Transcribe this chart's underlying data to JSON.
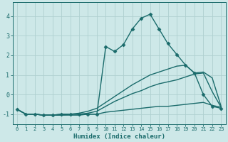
{
  "xlabel": "Humidex (Indice chaleur)",
  "ylabel": "",
  "xlim": [
    -0.5,
    23.5
  ],
  "ylim": [
    -1.5,
    4.7
  ],
  "xticks": [
    0,
    1,
    2,
    3,
    4,
    5,
    6,
    7,
    8,
    9,
    10,
    11,
    12,
    13,
    14,
    15,
    16,
    17,
    18,
    19,
    20,
    21,
    22,
    23
  ],
  "yticks": [
    -1,
    0,
    1,
    2,
    3,
    4
  ],
  "bg_color": "#cde8e8",
  "line_color": "#1a6b6b",
  "grid_color": "#aed0d0",
  "lines": [
    {
      "x": [
        0,
        1,
        2,
        3,
        4,
        5,
        6,
        7,
        8,
        9,
        10,
        11,
        12,
        13,
        14,
        15,
        16,
        17,
        18,
        19,
        20,
        21,
        22,
        23
      ],
      "y": [
        -0.75,
        -1.0,
        -1.0,
        -1.05,
        -1.05,
        -1.05,
        -1.05,
        -1.05,
        -1.0,
        -1.0,
        -0.9,
        -0.85,
        -0.8,
        -0.75,
        -0.7,
        -0.65,
        -0.6,
        -0.6,
        -0.55,
        -0.5,
        -0.45,
        -0.4,
        -0.55,
        -0.65
      ],
      "marker": null,
      "linewidth": 1.0
    },
    {
      "x": [
        0,
        1,
        2,
        3,
        4,
        5,
        6,
        7,
        8,
        9,
        10,
        11,
        12,
        13,
        14,
        15,
        16,
        17,
        18,
        19,
        20,
        21,
        22,
        23
      ],
      "y": [
        -0.75,
        -1.0,
        -1.0,
        -1.05,
        -1.05,
        -1.05,
        -1.0,
        -1.0,
        -0.95,
        -0.85,
        -0.6,
        -0.35,
        -0.15,
        0.05,
        0.2,
        0.4,
        0.55,
        0.65,
        0.75,
        0.9,
        1.05,
        1.1,
        0.15,
        -0.65
      ],
      "marker": null,
      "linewidth": 1.0
    },
    {
      "x": [
        0,
        1,
        2,
        3,
        4,
        5,
        6,
        7,
        8,
        9,
        10,
        11,
        12,
        13,
        14,
        15,
        16,
        17,
        18,
        19,
        20,
        21,
        22,
        23
      ],
      "y": [
        -0.75,
        -1.0,
        -1.0,
        -1.05,
        -1.05,
        -1.0,
        -1.0,
        -0.95,
        -0.85,
        -0.7,
        -0.4,
        -0.1,
        0.2,
        0.5,
        0.75,
        1.0,
        1.15,
        1.3,
        1.45,
        1.5,
        1.1,
        1.15,
        0.85,
        -0.6
      ],
      "marker": null,
      "linewidth": 1.0
    },
    {
      "x": [
        0,
        1,
        2,
        3,
        4,
        5,
        6,
        7,
        8,
        9,
        10,
        11,
        12,
        13,
        14,
        15,
        16,
        17,
        18,
        19,
        20,
        21,
        22,
        23
      ],
      "y": [
        -0.75,
        -1.0,
        -1.0,
        -1.05,
        -1.05,
        -1.0,
        -1.0,
        -1.0,
        -1.0,
        -1.0,
        2.45,
        2.2,
        2.55,
        3.35,
        3.9,
        4.1,
        3.35,
        2.6,
        2.05,
        1.5,
        1.1,
        0.0,
        -0.6,
        -0.7
      ],
      "marker": "D",
      "markersize": 2.5,
      "linewidth": 1.0
    }
  ]
}
